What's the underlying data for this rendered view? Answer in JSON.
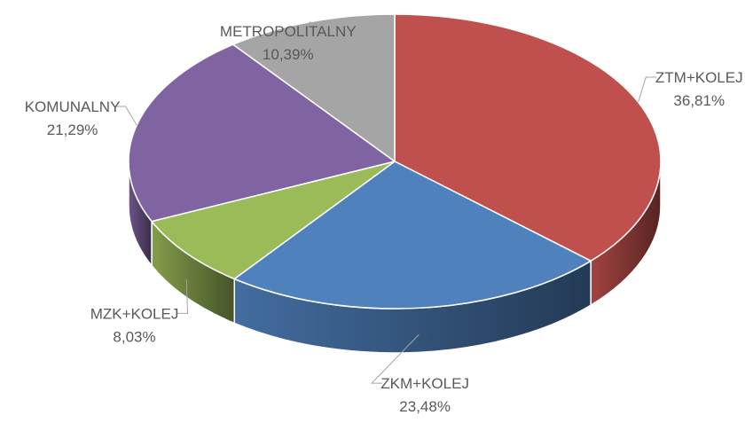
{
  "chart_data": {
    "type": "pie",
    "categories": [
      "ZTM+KOLEJ",
      "ZKM+KOLEJ",
      "MZK+KOLEJ",
      "KOMUNALNY",
      "METROPOLITALNY"
    ],
    "values": [
      36.81,
      23.48,
      8.03,
      21.29,
      10.39
    ],
    "value_labels": [
      "36,81%",
      "23,48%",
      "8,03%",
      "21,29%",
      "10,39%"
    ],
    "colors": [
      "#c0504d",
      "#4f81bd",
      "#9bbb59",
      "#8064a2",
      "#a5a5a5"
    ]
  }
}
